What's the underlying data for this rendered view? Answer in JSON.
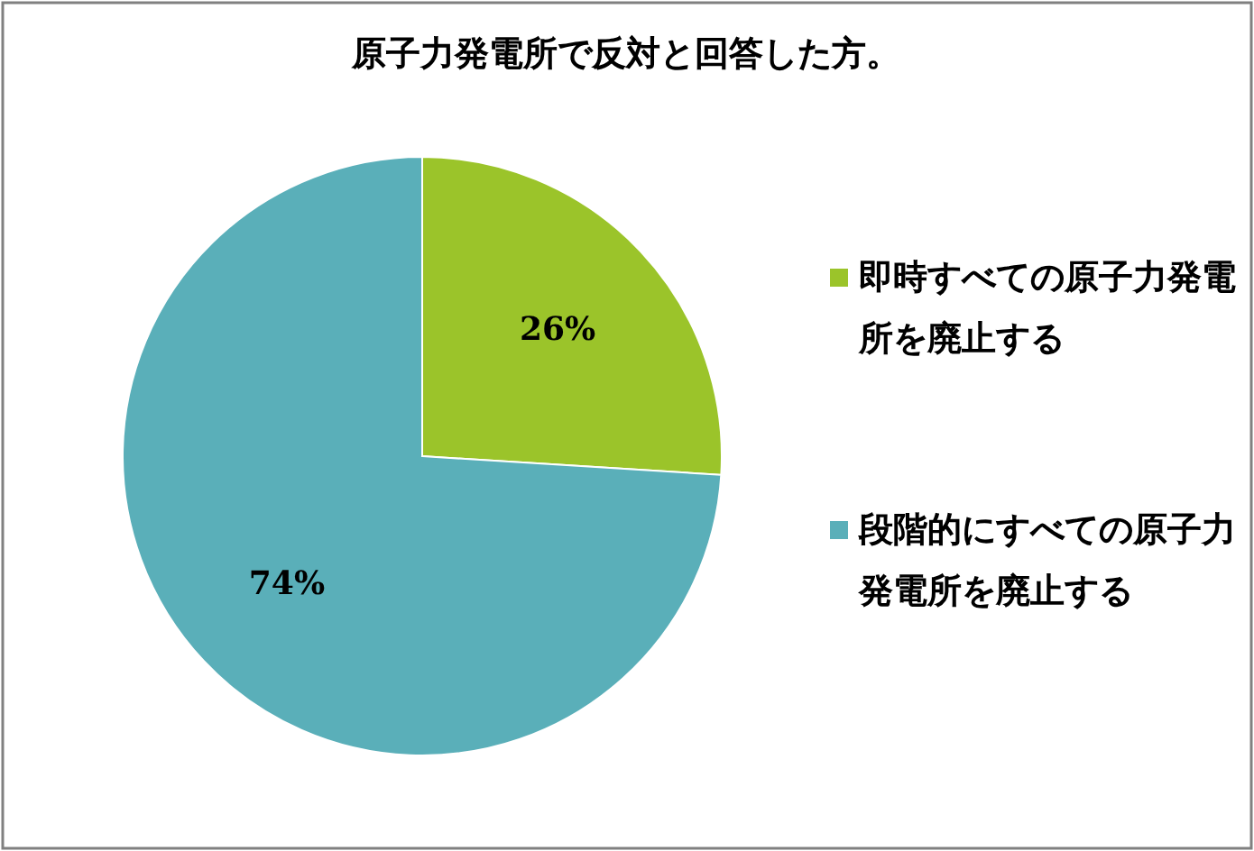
{
  "chart_data": {
    "type": "pie",
    "title": "原子力発電所で反対と回答した方。",
    "categories": [
      "即時すべての原子力発電所を廃止する",
      "段階的にすべての原子力発電所を廃止する"
    ],
    "values": [
      26,
      74
    ],
    "colors": [
      "#9bc42a",
      "#5aafb9"
    ],
    "value_labels": [
      "26%",
      "74%"
    ],
    "legend": "right"
  }
}
